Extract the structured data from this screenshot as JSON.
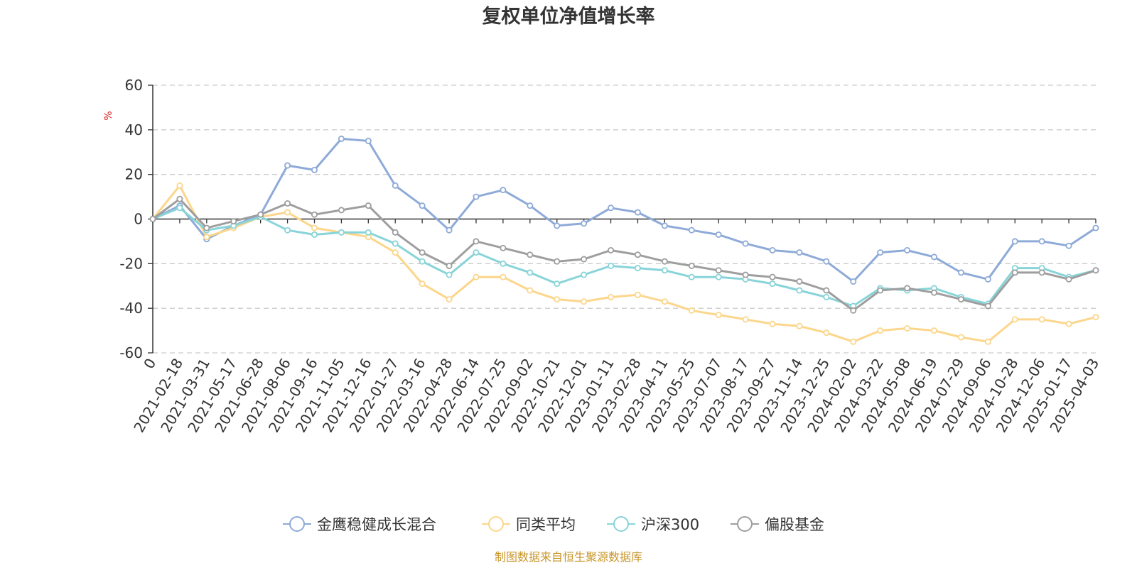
{
  "chart_data": {
    "type": "line",
    "title": "复权单位净值增长率",
    "ylabel": "%",
    "ylim": [
      -60,
      60
    ],
    "yticks": [
      60,
      40,
      20,
      0,
      -20,
      -40,
      -60
    ],
    "grid": true,
    "legend_position": "bottom",
    "x_tick_labels": [
      "0",
      "2021-02-18",
      "2021-03-31",
      "2021-05-17",
      "2021-06-28",
      "2021-08-06",
      "2021-09-16",
      "2021-11-05",
      "2021-12-16",
      "2022-01-27",
      "2022-03-16",
      "2022-04-28",
      "2022-06-14",
      "2022-07-25",
      "2022-09-02",
      "2022-10-21",
      "2022-12-01",
      "2023-01-11",
      "2023-02-28",
      "2023-04-11",
      "2023-05-25",
      "2023-07-07",
      "2023-08-17",
      "2023-09-27",
      "2023-11-14",
      "2023-12-25",
      "2024-02-02",
      "2024-03-22",
      "2024-05-08",
      "2024-06-19",
      "2024-07-29",
      "2024-09-06",
      "2024-10-28",
      "2024-12-06",
      "2025-01-17",
      "2025-04-03"
    ],
    "x": [
      "0",
      "2021-02-18",
      "2021-03-31",
      "2021-05-17",
      "2021-06-28",
      "2021-08-06",
      "2021-09-16",
      "2021-11-05",
      "2021-12-16",
      "2022-01-27",
      "2022-03-16",
      "2022-04-28",
      "2022-06-14",
      "2022-07-25",
      "2022-09-02",
      "2022-10-21",
      "2022-12-01",
      "2023-01-11",
      "2023-02-28",
      "2023-04-11",
      "2023-05-25",
      "2023-07-07",
      "2023-08-17",
      "2023-09-27",
      "2023-11-14",
      "2023-12-25",
      "2024-02-02",
      "2024-03-22",
      "2024-05-08",
      "2024-06-19",
      "2024-07-29",
      "2024-09-06",
      "2024-10-28",
      "2024-12-06",
      "2025-01-17",
      "2025-04-03"
    ],
    "series": [
      {
        "name": "金鹰稳健成长混合",
        "color": "#8eaad8",
        "values": [
          0,
          6,
          -9,
          -3,
          2,
          24,
          22,
          36,
          35,
          15,
          6,
          -5,
          10,
          13,
          6,
          -3,
          -2,
          5,
          3,
          -3,
          -5,
          -7,
          -11,
          -14,
          -15,
          -19,
          -28,
          -15,
          -14,
          -17,
          -24,
          -27,
          -10,
          -10,
          -12,
          -4
        ]
      },
      {
        "name": "同类平均",
        "color": "#fcd68b",
        "values": [
          0,
          15,
          -8,
          -4,
          1,
          3,
          -4,
          -6,
          -8,
          -15,
          -29,
          -36,
          -26,
          -26,
          -32,
          -36,
          -37,
          -35,
          -34,
          -37,
          -41,
          -43,
          -45,
          -47,
          -48,
          -51,
          -55,
          -50,
          -49,
          -50,
          -53,
          -55,
          -45,
          -45,
          -47,
          -44
        ]
      },
      {
        "name": "沪深300",
        "color": "#88d4d8",
        "values": [
          0,
          5,
          -5,
          -3,
          1,
          -5,
          -7,
          -6,
          -6,
          -11,
          -19,
          -25,
          -15,
          -20,
          -24,
          -29,
          -25,
          -21,
          -22,
          -23,
          -26,
          -26,
          -27,
          -29,
          -32,
          -35,
          -39,
          -31,
          -32,
          -31,
          -35,
          -38,
          -22,
          -22,
          -26,
          -23
        ]
      },
      {
        "name": "偏股基金",
        "color": "#9e9e9e",
        "values": [
          0,
          9,
          -4,
          -1,
          2,
          7,
          2,
          4,
          6,
          -6,
          -15,
          -21,
          -10,
          -13,
          -16,
          -19,
          -18,
          -14,
          -16,
          -19,
          -21,
          -23,
          -25,
          -26,
          -28,
          -32,
          -41,
          -32,
          -31,
          -33,
          -36,
          -39,
          -24,
          -24,
          -27,
          -23
        ]
      }
    ]
  },
  "source_text": "制图数据来自恒生聚源数据库"
}
